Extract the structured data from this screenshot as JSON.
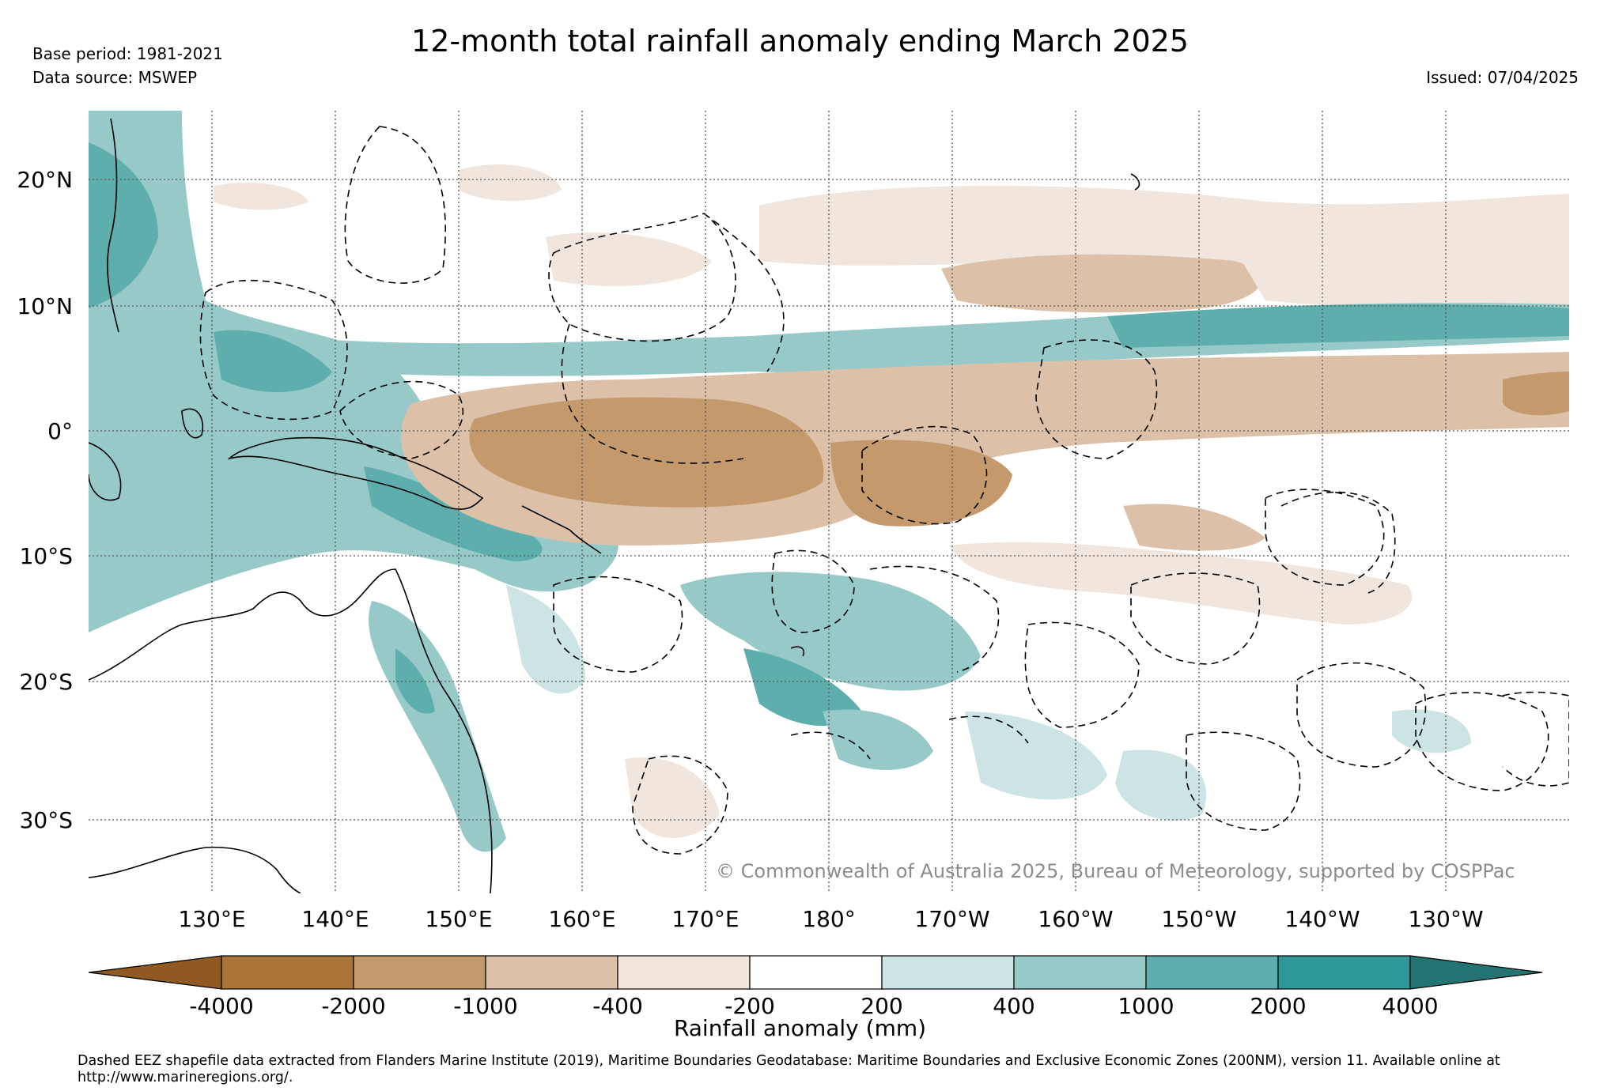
{
  "header": {
    "title": "12-month total rainfall anomaly ending March 2025",
    "base_period": "Base period: 1981-2021",
    "data_source": "Data source: MSWEP",
    "issued": "Issued: 07/04/2025"
  },
  "map": {
    "lat_ticks": [
      "20°N",
      "10°N",
      "0°",
      "10°S",
      "20°S",
      "30°S"
    ],
    "lon_ticks": [
      "130°E",
      "140°E",
      "150°E",
      "160°E",
      "170°E",
      "180°",
      "170°W",
      "160°W",
      "150°W",
      "140°W",
      "130°W"
    ],
    "copyright": "© Commonwealth of Australia 2025, Bureau of Meteorology, supported by COSPPac"
  },
  "colorbar": {
    "label": "Rainfall anomaly (mm)",
    "tick_labels": [
      "-4000",
      "-2000",
      "-1000",
      "-400",
      "-200",
      "200",
      "400",
      "1000",
      "2000",
      "4000"
    ],
    "colors": [
      "#8e5a22",
      "#ab7437",
      "#c49a6d",
      "#dcc1a8",
      "#f0e6dd",
      "#ffffff",
      "#cde4e4",
      "#97c9c9",
      "#5eaeae",
      "#2e9797",
      "#237373"
    ]
  },
  "footnote": "Dashed EEZ shapefile data extracted from Flanders Marine Institute (2019), Maritime Boundaries Geodatabase: Maritime Boundaries and Exclusive Economic Zones (200NM), version 11. Available online at http://www.marineregions.org/."
}
